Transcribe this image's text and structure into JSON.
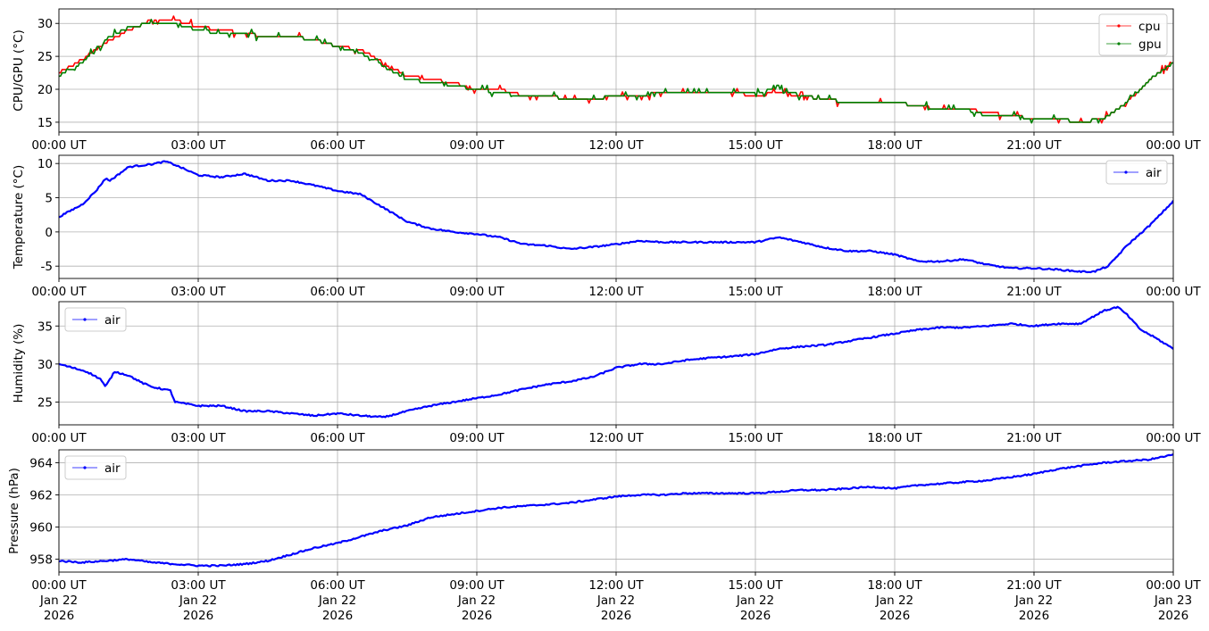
{
  "chart_data": [
    {
      "type": "line",
      "ylabel": "CPU/GPU (°C)",
      "ylim": [
        13.5,
        32.2
      ],
      "yticks": [
        15,
        20,
        25,
        30
      ],
      "xticks": [
        "00:00 UT",
        "03:00 UT",
        "06:00 UT",
        "09:00 UT",
        "12:00 UT",
        "15:00 UT",
        "18:00 UT",
        "21:00 UT",
        "00:00 UT"
      ],
      "x_range_hours": [
        0,
        24
      ],
      "grid": true,
      "legend": "top-right",
      "series": [
        {
          "name": "cpu",
          "color": "#ff0000",
          "x_hours": [
            0,
            0.5,
            1.0,
            1.5,
            2.0,
            2.5,
            3.0,
            3.5,
            4.0,
            4.5,
            5.0,
            5.5,
            6.0,
            6.5,
            7.0,
            7.5,
            8.0,
            8.5,
            9.0,
            9.5,
            10.0,
            10.5,
            11.0,
            11.5,
            12.0,
            12.5,
            13.0,
            13.5,
            14.0,
            14.5,
            15.0,
            15.5,
            16.0,
            16.5,
            17.0,
            17.5,
            18.0,
            18.5,
            19.0,
            19.5,
            20.0,
            20.5,
            21.0,
            21.5,
            22.0,
            22.5,
            23.0,
            23.5,
            24.0
          ],
          "values": [
            22.5,
            24.5,
            27.0,
            29.0,
            30.5,
            30.5,
            29.5,
            29.0,
            28.5,
            28.0,
            28.0,
            27.5,
            26.5,
            26.0,
            24.0,
            22.0,
            21.5,
            21.0,
            20.0,
            20.0,
            19.0,
            19.0,
            18.5,
            18.5,
            19.0,
            19.0,
            19.5,
            19.5,
            19.5,
            19.5,
            19.0,
            19.5,
            19.0,
            18.5,
            18.0,
            18.0,
            18.0,
            17.5,
            17.0,
            17.0,
            16.5,
            16.0,
            15.5,
            15.5,
            15.0,
            15.5,
            18.0,
            21.5,
            24.0
          ]
        },
        {
          "name": "gpu",
          "color": "#008000",
          "x_hours": [
            0,
            0.5,
            1.0,
            1.5,
            2.0,
            2.5,
            3.0,
            3.5,
            4.0,
            4.5,
            5.0,
            5.5,
            6.0,
            6.5,
            7.0,
            7.5,
            8.0,
            8.5,
            9.0,
            9.5,
            10.0,
            10.5,
            11.0,
            11.5,
            12.0,
            12.5,
            13.0,
            13.5,
            14.0,
            14.5,
            15.0,
            15.5,
            16.0,
            16.5,
            17.0,
            17.5,
            18.0,
            18.5,
            19.0,
            19.5,
            20.0,
            20.5,
            21.0,
            21.5,
            22.0,
            22.5,
            23.0,
            23.5,
            24.0
          ],
          "values": [
            22.0,
            24.0,
            27.5,
            29.5,
            30.0,
            30.0,
            29.0,
            28.5,
            28.5,
            28.0,
            28.0,
            27.5,
            26.5,
            25.5,
            23.5,
            21.5,
            21.0,
            20.5,
            20.0,
            19.5,
            19.0,
            19.0,
            18.5,
            18.5,
            19.0,
            19.0,
            19.5,
            19.5,
            19.5,
            19.5,
            19.5,
            20.0,
            19.0,
            18.5,
            18.0,
            18.0,
            18.0,
            17.5,
            17.0,
            17.0,
            16.0,
            16.0,
            15.5,
            15.5,
            15.0,
            15.5,
            18.0,
            21.5,
            24.0
          ]
        }
      ]
    },
    {
      "type": "line",
      "ylabel": "Temperature (°C)",
      "ylim": [
        -6.8,
        11.2
      ],
      "yticks": [
        -5,
        0,
        5,
        10
      ],
      "xticks": [
        "00:00 UT",
        "03:00 UT",
        "06:00 UT",
        "09:00 UT",
        "12:00 UT",
        "15:00 UT",
        "18:00 UT",
        "21:00 UT",
        "00:00 UT"
      ],
      "x_range_hours": [
        0,
        24
      ],
      "grid": true,
      "legend": "top-right",
      "series": [
        {
          "name": "air",
          "color": "#0000ff",
          "x_hours": [
            0,
            0.5,
            0.8,
            1.0,
            1.1,
            1.5,
            2.0,
            2.3,
            2.5,
            3.0,
            3.5,
            4.0,
            4.5,
            5.0,
            5.5,
            6.0,
            6.5,
            7.0,
            7.5,
            8.0,
            8.5,
            9.0,
            9.5,
            10.0,
            10.5,
            11.0,
            11.5,
            12.0,
            12.5,
            13.0,
            13.5,
            14.0,
            14.5,
            15.0,
            15.5,
            16.0,
            16.5,
            17.0,
            17.5,
            18.0,
            18.5,
            19.0,
            19.5,
            20.0,
            20.5,
            21.0,
            21.5,
            22.0,
            22.3,
            22.6,
            23.0,
            23.5,
            24.0
          ],
          "values": [
            2.2,
            4.0,
            6.0,
            7.8,
            7.5,
            9.5,
            9.9,
            10.3,
            9.8,
            8.3,
            8.0,
            8.5,
            7.5,
            7.5,
            6.8,
            6.0,
            5.5,
            3.5,
            1.5,
            0.5,
            0.0,
            -0.3,
            -0.8,
            -1.8,
            -2.0,
            -2.5,
            -2.2,
            -1.8,
            -1.3,
            -1.5,
            -1.5,
            -1.5,
            -1.5,
            -1.5,
            -0.8,
            -1.5,
            -2.3,
            -2.8,
            -2.8,
            -3.3,
            -4.3,
            -4.3,
            -4.0,
            -4.8,
            -5.3,
            -5.3,
            -5.5,
            -5.8,
            -5.8,
            -5.0,
            -2.0,
            1.0,
            4.5
          ]
        }
      ]
    },
    {
      "type": "line",
      "ylabel": "Humidity (%)",
      "ylim": [
        22.0,
        38.2
      ],
      "yticks": [
        25,
        30,
        35
      ],
      "xticks": [
        "00:00 UT",
        "03:00 UT",
        "06:00 UT",
        "09:00 UT",
        "12:00 UT",
        "15:00 UT",
        "18:00 UT",
        "21:00 UT",
        "00:00 UT"
      ],
      "x_range_hours": [
        0,
        24
      ],
      "grid": true,
      "legend": "top-left",
      "series": [
        {
          "name": "air",
          "color": "#0000ff",
          "x_hours": [
            0,
            0.3,
            0.6,
            0.9,
            1.0,
            1.2,
            1.5,
            1.8,
            2.0,
            2.4,
            2.5,
            3.0,
            3.5,
            4.0,
            4.5,
            5.0,
            5.5,
            6.0,
            6.5,
            7.0,
            7.5,
            8.0,
            8.5,
            9.0,
            9.5,
            10.0,
            10.5,
            11.0,
            11.5,
            12.0,
            12.5,
            13.0,
            13.5,
            14.0,
            14.5,
            15.0,
            15.5,
            16.0,
            16.5,
            17.0,
            17.5,
            18.0,
            18.5,
            19.0,
            19.5,
            20.0,
            20.5,
            21.0,
            21.5,
            22.0,
            22.5,
            22.8,
            23.0,
            23.3,
            23.6,
            24.0
          ],
          "values": [
            30.0,
            29.5,
            29.0,
            28.0,
            27.0,
            29.0,
            28.5,
            27.5,
            27.0,
            26.5,
            25.0,
            24.5,
            24.5,
            23.8,
            23.8,
            23.5,
            23.2,
            23.5,
            23.2,
            23.0,
            23.8,
            24.5,
            25.0,
            25.5,
            26.0,
            26.7,
            27.3,
            27.7,
            28.3,
            29.5,
            30.0,
            30.0,
            30.5,
            30.8,
            31.0,
            31.3,
            32.0,
            32.3,
            32.5,
            33.0,
            33.5,
            34.0,
            34.5,
            34.8,
            34.8,
            35.0,
            35.3,
            35.0,
            35.3,
            35.3,
            37.0,
            37.5,
            36.5,
            34.5,
            33.5,
            32.0
          ]
        }
      ]
    },
    {
      "type": "line",
      "ylabel": "Pressure (hPa)",
      "ylim": [
        957.2,
        964.8
      ],
      "yticks": [
        958,
        960,
        962,
        964
      ],
      "xticks": [
        "00:00 UT",
        "03:00 UT",
        "06:00 UT",
        "09:00 UT",
        "12:00 UT",
        "15:00 UT",
        "18:00 UT",
        "21:00 UT",
        "00:00 UT"
      ],
      "x_range_hours": [
        0,
        24
      ],
      "grid": true,
      "legend": "top-left",
      "series": [
        {
          "name": "air",
          "color": "#0000ff",
          "x_hours": [
            0,
            0.5,
            1.0,
            1.5,
            2.0,
            2.5,
            3.0,
            3.5,
            4.0,
            4.5,
            5.0,
            5.5,
            6.0,
            6.5,
            7.0,
            7.5,
            8.0,
            8.5,
            9.0,
            9.5,
            10.0,
            10.5,
            11.0,
            11.5,
            12.0,
            12.5,
            13.0,
            13.5,
            14.0,
            14.5,
            15.0,
            15.5,
            16.0,
            16.5,
            17.0,
            17.5,
            18.0,
            18.5,
            19.0,
            19.5,
            20.0,
            20.5,
            21.0,
            21.5,
            22.0,
            22.5,
            23.0,
            23.5,
            24.0
          ],
          "values": [
            957.9,
            957.8,
            957.9,
            958.0,
            957.8,
            957.7,
            957.6,
            957.6,
            957.7,
            957.9,
            958.3,
            958.7,
            959.0,
            959.4,
            959.8,
            960.1,
            960.6,
            960.8,
            961.0,
            961.2,
            961.3,
            961.4,
            961.5,
            961.7,
            961.9,
            962.0,
            962.0,
            962.1,
            962.1,
            962.1,
            962.1,
            962.2,
            962.3,
            962.3,
            962.4,
            962.5,
            962.4,
            962.6,
            962.7,
            962.8,
            962.9,
            963.1,
            963.3,
            963.6,
            963.8,
            964.0,
            964.1,
            964.2,
            964.5
          ]
        }
      ]
    }
  ],
  "xaxis_dates": [
    "Jan 22\n2026",
    "Jan 22\n2026",
    "Jan 22\n2026",
    "Jan 22\n2026",
    "Jan 22\n2026",
    "Jan 22\n2026",
    "Jan 22\n2026",
    "Jan 22\n2026",
    "Jan 23\n2026"
  ]
}
